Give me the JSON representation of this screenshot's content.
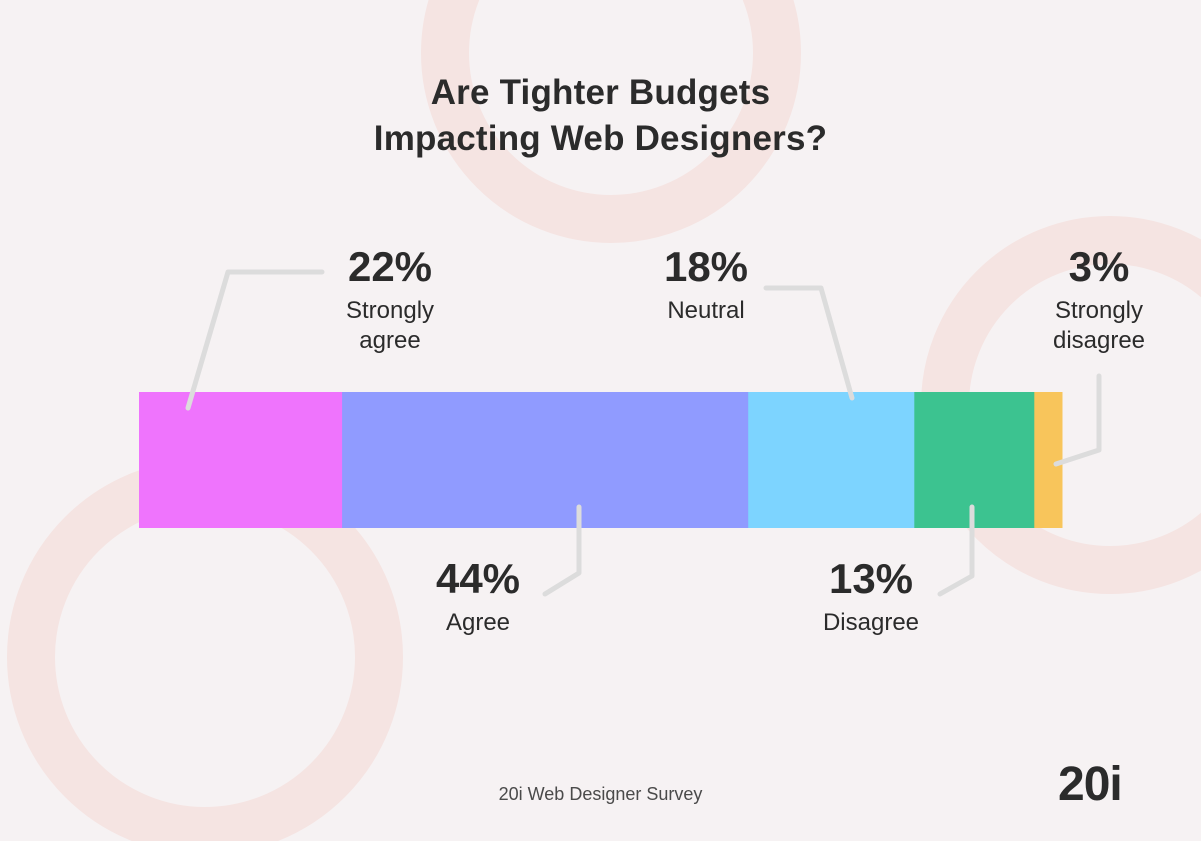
{
  "title_lines": [
    "Are Tighter Budgets",
    "Impacting Web Designers?"
  ],
  "source": "20i Web Designer Survey",
  "logo_text": "20i",
  "chart_data": {
    "type": "bar",
    "orientation": "horizontal-stacked",
    "unit": "%",
    "categories": [
      "Strongly agree",
      "Agree",
      "Neutral",
      "Disagree",
      "Strongly disagree"
    ],
    "values": [
      22,
      44,
      18,
      13,
      3
    ],
    "value_labels": [
      "22%",
      "44%",
      "18%",
      "13%",
      "3%"
    ],
    "label_lines": [
      [
        "Strongly",
        "agree"
      ],
      [
        "Agree"
      ],
      [
        "Neutral"
      ],
      [
        "Disagree"
      ],
      [
        "Strongly",
        "disagree"
      ]
    ],
    "colors": [
      "#ef74fd",
      "#909bff",
      "#7dd4ff",
      "#3cc390",
      "#f8c55b"
    ],
    "label_side": [
      "top",
      "bottom",
      "top",
      "bottom",
      "top"
    ],
    "leader_color": "#dcdcdc"
  },
  "background_colors": {
    "page": "#f6f2f3",
    "rings": "#f5e4e2"
  }
}
